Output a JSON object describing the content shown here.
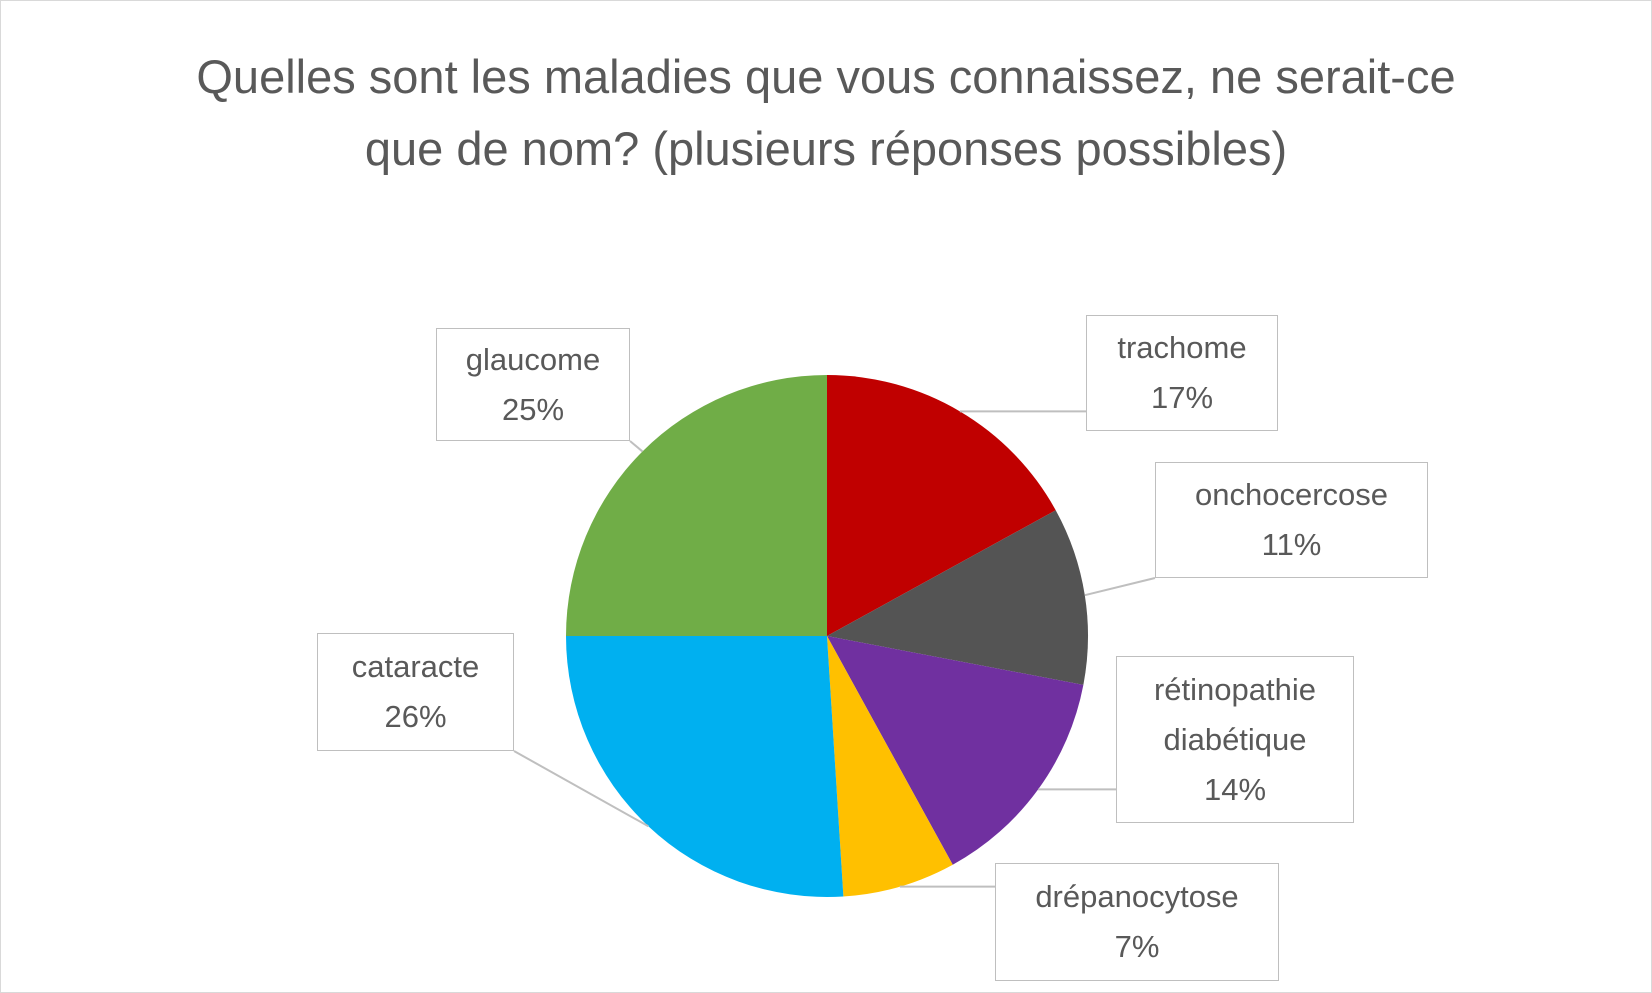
{
  "chart_data": {
    "type": "pie",
    "title": "Quelles sont les maladies que vous connaissez, ne serait-ce que de nom? (plusieurs réponses possibles)",
    "categories": [
      "trachome",
      "onchocercose",
      "rétinopathie diabétique",
      "drépanocytose",
      "cataracte",
      "glaucome"
    ],
    "values": [
      17,
      11,
      14,
      7,
      26,
      25
    ],
    "value_labels": [
      "17%",
      "11%",
      "14%",
      "7%",
      "26%",
      "25%"
    ],
    "colors": [
      "#c00000",
      "#545454",
      "#7030a0",
      "#ffc000",
      "#00b0f0",
      "#70ad47"
    ]
  }
}
